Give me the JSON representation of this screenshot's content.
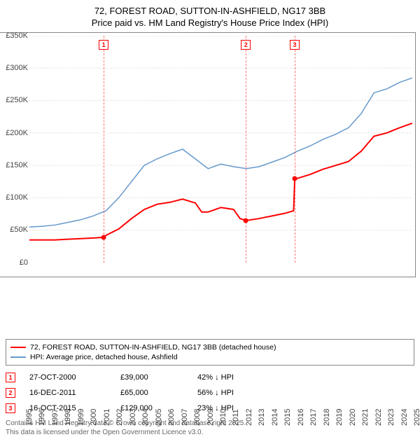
{
  "title": {
    "line1": "72, FOREST ROAD, SUTTON-IN-ASHFIELD, NG17 3BB",
    "line2": "Price paid vs. HM Land Registry's House Price Index (HPI)"
  },
  "chart": {
    "type": "line",
    "background_color": "#ffffff",
    "grid_color": "#dddddd",
    "axis_color": "#888888",
    "x": {
      "min": 1995,
      "max": 2025,
      "ticks": [
        1995,
        1996,
        1997,
        1998,
        1999,
        2000,
        2001,
        2002,
        2003,
        2004,
        2005,
        2006,
        2007,
        2008,
        2009,
        2010,
        2011,
        2012,
        2013,
        2014,
        2015,
        2016,
        2017,
        2018,
        2019,
        2020,
        2021,
        2022,
        2023,
        2024,
        2025
      ]
    },
    "y": {
      "min": 0,
      "max": 350000,
      "ticks": [
        0,
        50000,
        100000,
        150000,
        200000,
        250000,
        300000,
        350000
      ],
      "labels": [
        "£0",
        "£50K",
        "£100K",
        "£150K",
        "£200K",
        "£250K",
        "£300K",
        "£350K"
      ]
    },
    "series": {
      "prop": {
        "label": "72, FOREST ROAD, SUTTON-IN-ASHFIELD, NG17 3BB (detached house)",
        "color": "#ff0000",
        "width": 2,
        "points": [
          [
            1995,
            35000
          ],
          [
            1996,
            35000
          ],
          [
            1997,
            35000
          ],
          [
            1998,
            36000
          ],
          [
            1999,
            37000
          ],
          [
            2000,
            38000
          ],
          [
            2000.8,
            39000
          ],
          [
            2001,
            42000
          ],
          [
            2002,
            52000
          ],
          [
            2003,
            68000
          ],
          [
            2004,
            82000
          ],
          [
            2005,
            90000
          ],
          [
            2006,
            93000
          ],
          [
            2007,
            98000
          ],
          [
            2008,
            92000
          ],
          [
            2008.5,
            78000
          ],
          [
            2009,
            78000
          ],
          [
            2010,
            85000
          ],
          [
            2011,
            82000
          ],
          [
            2011.5,
            68000
          ],
          [
            2011.96,
            65000
          ],
          [
            2012,
            65000
          ],
          [
            2013,
            68000
          ],
          [
            2014,
            72000
          ],
          [
            2015,
            76000
          ],
          [
            2015.7,
            80000
          ],
          [
            2015.79,
            129000
          ],
          [
            2016,
            130000
          ],
          [
            2017,
            136000
          ],
          [
            2018,
            144000
          ],
          [
            2019,
            150000
          ],
          [
            2020,
            156000
          ],
          [
            2021,
            172000
          ],
          [
            2022,
            195000
          ],
          [
            2023,
            200000
          ],
          [
            2024,
            208000
          ],
          [
            2025,
            215000
          ]
        ]
      },
      "hpi": {
        "label": "HPI: Average price, detached house, Ashfield",
        "color": "#6699cc",
        "width": 1.5,
        "points": [
          [
            1995,
            55000
          ],
          [
            1996,
            56000
          ],
          [
            1997,
            58000
          ],
          [
            1998,
            62000
          ],
          [
            1999,
            66000
          ],
          [
            2000,
            72000
          ],
          [
            2001,
            80000
          ],
          [
            2002,
            100000
          ],
          [
            2003,
            125000
          ],
          [
            2004,
            150000
          ],
          [
            2005,
            160000
          ],
          [
            2006,
            168000
          ],
          [
            2007,
            175000
          ],
          [
            2008,
            160000
          ],
          [
            2009,
            145000
          ],
          [
            2010,
            152000
          ],
          [
            2011,
            148000
          ],
          [
            2012,
            145000
          ],
          [
            2013,
            148000
          ],
          [
            2014,
            155000
          ],
          [
            2015,
            162000
          ],
          [
            2016,
            172000
          ],
          [
            2017,
            180000
          ],
          [
            2018,
            190000
          ],
          [
            2019,
            198000
          ],
          [
            2020,
            208000
          ],
          [
            2021,
            230000
          ],
          [
            2022,
            262000
          ],
          [
            2023,
            268000
          ],
          [
            2024,
            278000
          ],
          [
            2025,
            285000
          ]
        ]
      }
    },
    "markers": [
      {
        "n": "1",
        "x": 2000.82,
        "y": 39000
      },
      {
        "n": "2",
        "x": 2011.96,
        "y": 65000
      },
      {
        "n": "3",
        "x": 2015.79,
        "y": 129000
      }
    ]
  },
  "legend": {
    "rows": [
      {
        "color": "#ff0000",
        "text": "72, FOREST ROAD, SUTTON-IN-ASHFIELD, NG17 3BB (detached house)"
      },
      {
        "color": "#6699cc",
        "text": "HPI: Average price, detached house, Ashfield"
      }
    ]
  },
  "sales": [
    {
      "n": "1",
      "date": "27-OCT-2000",
      "price": "£39,000",
      "delta": "42% ↓ HPI"
    },
    {
      "n": "2",
      "date": "16-DEC-2011",
      "price": "£65,000",
      "delta": "56% ↓ HPI"
    },
    {
      "n": "3",
      "date": "16-OCT-2015",
      "price": "£129,000",
      "delta": "23% ↓ HPI"
    }
  ],
  "footer": {
    "line1": "Contains HM Land Registry data © Crown copyright and database right 2025.",
    "line2": "This data is licensed under the Open Government Licence v3.0."
  }
}
